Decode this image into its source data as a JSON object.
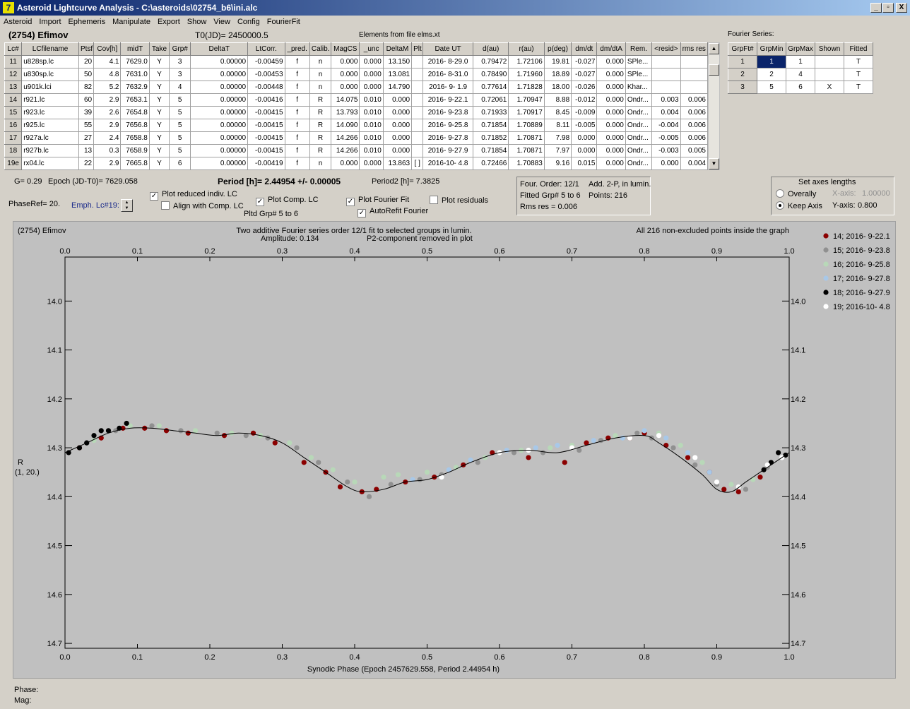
{
  "window": {
    "title": "Asteroid Lightcurve Analysis - C:\\asteroids\\02754_b6\\ini.alc",
    "app_icon": "alc-logo-icon",
    "buttons": [
      "_",
      "▫",
      "X"
    ]
  },
  "menu": [
    "Asteroid",
    "Import",
    "Ephemeris",
    "Manipulate",
    "Export",
    "Show",
    "View",
    "Config",
    "FourierFit"
  ],
  "header": {
    "asteroid": "(2754) Efimov",
    "t0": "T0(JD)= 2450000.5",
    "elements_source": "Elements from file elms.xt",
    "fourier_title": "Fourier Series:"
  },
  "lc_table": {
    "columns": [
      "Lc#",
      "LCfilename",
      "Ptsf",
      "Cov[h]",
      "midT",
      "Take",
      "Grp#",
      "DeltaT",
      "LtCorr.",
      "_pred.",
      "Calib.",
      "MagCS",
      "_unc",
      "DeltaM",
      "Plt",
      "Date UT",
      "d(au)",
      "r(au)",
      "p(deg)",
      "dm/dt",
      "dm/dtA",
      "Rem.",
      "<resid>",
      "rms res"
    ],
    "rows": [
      [
        "11",
        "u828sp.lc",
        "20",
        "4.1",
        "7629.0",
        "Y",
        "3",
        "0.00000",
        "-0.00459",
        "f",
        "n",
        "0.000",
        "0.000",
        "13.150",
        "",
        "2016- 8-29.0",
        "0.79472",
        "1.72106",
        "19.81",
        "-0.027",
        "0.000",
        "SPle...",
        "",
        ""
      ],
      [
        "12",
        "u830sp.lc",
        "50",
        "4.8",
        "7631.0",
        "Y",
        "3",
        "0.00000",
        "-0.00453",
        "f",
        "n",
        "0.000",
        "0.000",
        "13.081",
        "",
        "2016- 8-31.0",
        "0.78490",
        "1.71960",
        "18.89",
        "-0.027",
        "0.000",
        "SPle...",
        "",
        ""
      ],
      [
        "13",
        "u901k.lci",
        "82",
        "5.2",
        "7632.9",
        "Y",
        "4",
        "0.00000",
        "-0.00448",
        "f",
        "n",
        "0.000",
        "0.000",
        "14.790",
        "",
        "2016- 9- 1.9",
        "0.77614",
        "1.71828",
        "18.00",
        "-0.026",
        "0.000",
        "Khar...",
        "",
        ""
      ],
      [
        "14",
        "r921.lc",
        "60",
        "2.9",
        "7653.1",
        "Y",
        "5",
        "0.00000",
        "-0.00416",
        "f",
        "R",
        "14.075",
        "0.010",
        "0.000",
        "",
        "2016- 9-22.1",
        "0.72061",
        "1.70947",
        "8.88",
        "-0.012",
        "0.000",
        "Ondr...",
        "0.003",
        "0.006"
      ],
      [
        "15",
        "r923.lc",
        "39",
        "2.6",
        "7654.8",
        "Y",
        "5",
        "0.00000",
        "-0.00415",
        "f",
        "R",
        "13.793",
        "0.010",
        "0.000",
        "",
        "2016- 9-23.8",
        "0.71933",
        "1.70917",
        "8.45",
        "-0.009",
        "0.000",
        "Ondr...",
        "0.004",
        "0.006"
      ],
      [
        "16",
        "r925.lc",
        "55",
        "2.9",
        "7656.8",
        "Y",
        "5",
        "0.00000",
        "-0.00415",
        "f",
        "R",
        "14.090",
        "0.010",
        "0.000",
        "",
        "2016- 9-25.8",
        "0.71854",
        "1.70889",
        "8.11",
        "-0.005",
        "0.000",
        "Ondr...",
        "-0.004",
        "0.006"
      ],
      [
        "17",
        "r927a.lc",
        "27",
        "2.4",
        "7658.8",
        "Y",
        "5",
        "0.00000",
        "-0.00415",
        "f",
        "R",
        "14.266",
        "0.010",
        "0.000",
        "",
        "2016- 9-27.8",
        "0.71852",
        "1.70871",
        "7.98",
        "0.000",
        "0.000",
        "Ondr...",
        "-0.005",
        "0.006"
      ],
      [
        "18",
        "r927b.lc",
        "13",
        "0.3",
        "7658.9",
        "Y",
        "5",
        "0.00000",
        "-0.00415",
        "f",
        "R",
        "14.266",
        "0.010",
        "0.000",
        "",
        "2016- 9-27.9",
        "0.71854",
        "1.70871",
        "7.97",
        "0.000",
        "0.000",
        "Ondr...",
        "-0.003",
        "0.005"
      ],
      [
        "19e",
        "rx04.lc",
        "22",
        "2.9",
        "7665.8",
        "Y",
        "6",
        "0.00000",
        "-0.00419",
        "f",
        "n",
        "0.000",
        "0.000",
        "13.863",
        "[ ]",
        "2016-10- 4.8",
        "0.72466",
        "1.70883",
        "9.16",
        "0.015",
        "0.000",
        "Ondr...",
        "0.000",
        "0.004"
      ]
    ]
  },
  "fourier_table": {
    "columns": [
      "GrpFt#",
      "GrpMin",
      "GrpMax",
      "Shown",
      "Fitted"
    ],
    "rows": [
      [
        "1",
        "1",
        "1",
        "",
        "T"
      ],
      [
        "2",
        "2",
        "4",
        "",
        "T"
      ],
      [
        "3",
        "5",
        "6",
        "X",
        "T"
      ]
    ]
  },
  "info": {
    "g": "G= 0.29",
    "epoch": "Epoch (JD-T0)= 7629.058",
    "period": "Period [h]= 2.44954 +/- 0.00005",
    "period2": "Period2 [h]= 7.3825",
    "phaseref": "PhaseRef= 20.",
    "emph": "Emph. Lc#19:",
    "pltd_grp": "Pltd Grp#  5  to  6"
  },
  "checkboxes": {
    "plot_reduced": {
      "label": "Plot reduced indiv. LC",
      "checked": true
    },
    "align_comp": {
      "label": "Align with Comp. LC",
      "checked": false
    },
    "plot_comp": {
      "label": "Plot Comp. LC",
      "checked": true
    },
    "plot_fourier": {
      "label": "Plot Fourier Fit",
      "checked": true
    },
    "autorefit": {
      "label": "AutoRefit Fourier",
      "checked": true
    },
    "plot_residuals": {
      "label": "Plot residuals",
      "checked": false
    }
  },
  "fit_box": {
    "order": "Four. Order: 12/1",
    "add": "Add. 2-P, in lumin.",
    "fitted": "Fitted Grp# 5 to 6",
    "points": "Points: 216",
    "rms": "Rms res     = 0.006"
  },
  "axes_box": {
    "title": "Set axes lengths",
    "overally": "Overally",
    "keep_axis": "Keep Axis",
    "x_axis_label": "X-axis:",
    "x_axis_value": "1.00000",
    "y_axis_label": "Y-axis:",
    "y_axis_value": "0.800",
    "selected": "keep_axis"
  },
  "status": {
    "phase": "Phase:",
    "mag": "Mag:"
  },
  "chart_data": {
    "type": "scatter",
    "header_left": "(2754) Efimov",
    "title": "Two additive Fourier series order 12/1 fit to selected groups in lumin.",
    "subtitle_left": "Amplitude: 0.134",
    "subtitle_right": "P2-component removed in plot",
    "header_right": "All 216 non-excluded points inside the graph",
    "xlabel": "Synodic Phase (Epoch 2457629.558, Period 2.44954 h)",
    "ylabel": "R",
    "ylabel2": "(1, 20.)",
    "xlim": [
      0.0,
      1.0
    ],
    "ylim": [
      13.91,
      14.71
    ],
    "y_inverted": true,
    "x_ticks": [
      "0.0",
      "0.1",
      "0.2",
      "0.3",
      "0.4",
      "0.5",
      "0.6",
      "0.7",
      "0.8",
      "0.9",
      "1.0"
    ],
    "y_ticks": [
      "14.0",
      "14.1",
      "14.2",
      "14.3",
      "14.4",
      "14.5",
      "14.6",
      "14.7"
    ],
    "legend_position": "right",
    "fit_curve": {
      "phase": [
        0.0,
        0.03,
        0.06,
        0.09,
        0.12,
        0.15,
        0.18,
        0.21,
        0.24,
        0.27,
        0.3,
        0.33,
        0.36,
        0.39,
        0.41,
        0.44,
        0.47,
        0.5,
        0.53,
        0.56,
        0.6,
        0.64,
        0.68,
        0.72,
        0.76,
        0.8,
        0.82,
        0.85,
        0.88,
        0.9,
        0.92,
        0.94,
        0.96,
        0.98,
        1.0
      ],
      "mag": [
        14.31,
        14.29,
        14.27,
        14.26,
        14.26,
        14.265,
        14.27,
        14.275,
        14.27,
        14.275,
        14.29,
        14.32,
        14.35,
        14.38,
        14.39,
        14.385,
        14.37,
        14.365,
        14.35,
        14.33,
        14.31,
        14.305,
        14.31,
        14.295,
        14.28,
        14.275,
        14.29,
        14.32,
        14.355,
        14.385,
        14.39,
        14.37,
        14.35,
        14.33,
        14.31
      ]
    },
    "series": [
      {
        "name": "14; 2016- 9-22.1",
        "color": "#8b0000",
        "x": [
          0.02,
          0.05,
          0.08,
          0.11,
          0.14,
          0.17,
          0.22,
          0.26,
          0.29,
          0.33,
          0.36,
          0.38,
          0.41,
          0.43,
          0.47,
          0.51,
          0.55,
          0.59,
          0.64,
          0.69,
          0.72,
          0.75,
          0.78,
          0.8,
          0.83,
          0.86,
          0.89,
          0.91,
          0.93,
          0.96
        ],
        "y": [
          14.3,
          14.28,
          14.26,
          14.26,
          14.265,
          14.27,
          14.275,
          14.27,
          14.29,
          14.33,
          14.35,
          14.38,
          14.39,
          14.385,
          14.37,
          14.36,
          14.335,
          14.31,
          14.32,
          14.33,
          14.29,
          14.28,
          14.28,
          14.27,
          14.295,
          14.32,
          14.35,
          14.385,
          14.39,
          14.36
        ]
      },
      {
        "name": "15; 2016- 9-23.8",
        "color": "#909090",
        "x": [
          0.03,
          0.07,
          0.12,
          0.16,
          0.21,
          0.25,
          0.28,
          0.32,
          0.35,
          0.39,
          0.42,
          0.45,
          0.49,
          0.52,
          0.57,
          0.62,
          0.66,
          0.71,
          0.74,
          0.79,
          0.81,
          0.84,
          0.87,
          0.9,
          0.94,
          0.97
        ],
        "y": [
          14.29,
          14.265,
          14.255,
          14.265,
          14.27,
          14.275,
          14.28,
          14.3,
          14.33,
          14.37,
          14.4,
          14.375,
          14.365,
          14.355,
          14.33,
          14.31,
          14.31,
          14.305,
          14.285,
          14.27,
          14.28,
          14.3,
          14.335,
          14.375,
          14.385,
          14.34
        ]
      },
      {
        "name": "16; 2016- 9-25.8",
        "color": "#b8d8b8",
        "x": [
          0.04,
          0.09,
          0.13,
          0.18,
          0.23,
          0.27,
          0.31,
          0.34,
          0.37,
          0.4,
          0.44,
          0.46,
          0.5,
          0.54,
          0.58,
          0.63,
          0.67,
          0.7,
          0.76,
          0.82,
          0.85,
          0.88,
          0.92,
          0.95
        ],
        "y": [
          14.285,
          14.255,
          14.255,
          14.265,
          14.27,
          14.275,
          14.29,
          14.32,
          14.345,
          14.37,
          14.36,
          14.355,
          14.35,
          14.34,
          14.32,
          14.305,
          14.3,
          14.295,
          14.275,
          14.27,
          14.295,
          14.33,
          14.375,
          14.365
        ]
      },
      {
        "name": "17; 2016- 9-27.8",
        "color": "#a8c8e8",
        "x": [
          0.48,
          0.53,
          0.56,
          0.61,
          0.65,
          0.68,
          0.73,
          0.77,
          0.8,
          0.83,
          0.86,
          0.89
        ],
        "y": [
          14.365,
          14.345,
          14.325,
          14.305,
          14.3,
          14.295,
          14.285,
          14.28,
          14.265,
          14.28,
          14.31,
          14.35
        ]
      },
      {
        "name": "18; 2016- 9-27.9",
        "color": "#000000",
        "x": [
          0.005,
          0.02,
          0.03,
          0.04,
          0.05,
          0.06,
          0.075,
          0.085,
          0.965,
          0.975,
          0.985,
          0.995
        ],
        "y": [
          14.31,
          14.3,
          14.29,
          14.275,
          14.265,
          14.265,
          14.26,
          14.25,
          14.345,
          14.33,
          14.31,
          14.315
        ]
      },
      {
        "name": "19; 2016-10- 4.8",
        "color": "#ffffff",
        "x": [
          0.52,
          0.6,
          0.64,
          0.7,
          0.78,
          0.82,
          0.87,
          0.9,
          0.93,
          0.97,
          0.99
        ],
        "y": [
          14.36,
          14.31,
          14.305,
          14.3,
          14.28,
          14.275,
          14.32,
          14.37,
          14.38,
          14.335,
          14.32
        ]
      }
    ]
  }
}
